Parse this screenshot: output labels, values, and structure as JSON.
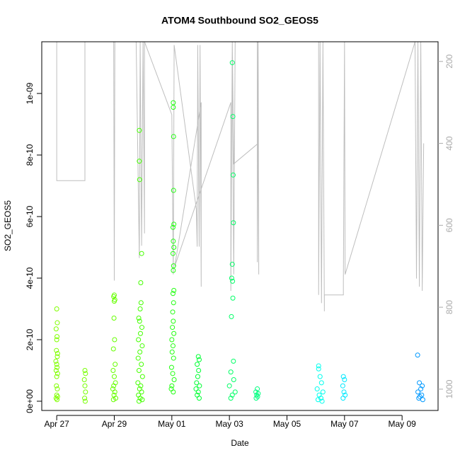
{
  "chart_data": {
    "type": "scatter",
    "title": "ATOM4 Southbound SO2_GEOS5",
    "x_label": "Date",
    "y_label": "SO2_GEOS5",
    "xlim": [
      -0.52,
      13.25
    ],
    "xticks": [
      {
        "value": 0,
        "label": "Apr 27"
      },
      {
        "value": 2,
        "label": "Apr 29"
      },
      {
        "value": 4,
        "label": "May 01"
      },
      {
        "value": 6,
        "label": "May 03"
      },
      {
        "value": 8,
        "label": "May 05"
      },
      {
        "value": 10,
        "label": "May 07"
      },
      {
        "value": 12,
        "label": "May 09"
      }
    ],
    "ylim": [
      -3e-11,
      1.168e-09
    ],
    "yticks": [
      {
        "value": 0,
        "label": "0e+00"
      },
      {
        "value": 2e-10,
        "label": "2e-10"
      },
      {
        "value": 4e-10,
        "label": "4e-10"
      },
      {
        "value": 6e-10,
        "label": "6e-10"
      },
      {
        "value": 8e-10,
        "label": "8e-10"
      },
      {
        "value": 1e-09,
        "label": "1e-09"
      }
    ],
    "y2lim": [
      1052,
      152
    ],
    "y2ticks": [
      200,
      400,
      600,
      800,
      1000
    ],
    "series": [
      {
        "color": "#80ff00",
        "values": [
          3e-10,
          2.55e-10,
          2.35e-10,
          2.1e-10,
          2e-10,
          1.65e-10,
          1.55e-10,
          1.45e-10,
          1.3e-10,
          1.2e-10,
          1.1e-10,
          1e-10,
          9e-11,
          8e-11,
          5e-11,
          4e-11,
          2e-11,
          1.5e-11,
          1e-11,
          5e-12
        ],
        "x": [
          0,
          0.02,
          -0.02,
          0.01,
          0,
          -0.01,
          0.03,
          0.02,
          -0.03,
          0,
          0.01,
          -0.02,
          0.03,
          0,
          -0.01,
          0.02,
          0,
          0.03,
          -0.02,
          0.01
        ]
      },
      {
        "color": "#77ff00",
        "values": [
          1e-10,
          9e-11,
          7e-11,
          5e-11,
          3e-11,
          1e-11,
          0
        ],
        "x": [
          0.98,
          1.0,
          0.96,
          0.98,
          1.0,
          0.97,
          0.99
        ]
      },
      {
        "color": "#66ff00",
        "values": [
          3.45e-10,
          3.4e-10,
          3.3e-10,
          3.25e-10,
          2.7e-10,
          2e-10,
          1.7e-10,
          1.2e-10,
          1e-10,
          8e-11,
          6e-11,
          5e-11,
          4e-11,
          3e-11,
          2e-11,
          1e-11,
          5e-12
        ],
        "x": [
          2.0,
          1.98,
          2.02,
          2.0,
          1.99,
          2.01,
          1.97,
          2.03,
          1.96,
          2.0,
          2.04,
          1.98,
          1.95,
          2.02,
          1.99,
          2.05,
          1.97
        ]
      },
      {
        "color": "#44ff00",
        "values": [
          8.8e-10,
          7.8e-10,
          7.2e-10,
          4.8e-10,
          3.85e-10,
          3.2e-10,
          3e-10,
          2.7e-10,
          2.6e-10,
          2.4e-10,
          2.2e-10,
          2e-10,
          1.8e-10,
          1.6e-10,
          1.4e-10,
          1.2e-10,
          1e-10,
          8e-11,
          6e-11,
          5e-11,
          4e-11,
          3e-11,
          2e-11,
          1e-11,
          5e-12,
          0
        ],
        "x": [
          2.87,
          2.87,
          2.88,
          2.95,
          2.92,
          2.93,
          2.9,
          2.85,
          2.88,
          2.96,
          2.91,
          2.84,
          2.97,
          2.89,
          2.83,
          2.94,
          2.86,
          2.98,
          2.82,
          2.92,
          2.88,
          2.95,
          2.84,
          2.9,
          2.97,
          2.86
        ]
      },
      {
        "color": "#22ff11",
        "values": [
          9.7e-10,
          9.55e-10,
          8.6e-10,
          6.85e-10,
          5.75e-10,
          5.65e-10,
          5.2e-10,
          5e-10,
          4.8e-10,
          4.4e-10,
          4.25e-10,
          3.6e-10,
          3.5e-10,
          3.2e-10,
          2.9e-10,
          2.6e-10,
          2.4e-10,
          2.2e-10,
          2e-10,
          1.8e-10,
          1.6e-10,
          1.4e-10,
          1.1e-10,
          9e-11,
          7e-11,
          5e-11,
          4e-11,
          3e-11
        ],
        "x": [
          4.05,
          4.05,
          4.06,
          4.06,
          4.07,
          4.04,
          4.05,
          4.07,
          4.04,
          4.06,
          4.05,
          4.07,
          4.04,
          4.06,
          4.03,
          4.05,
          4.02,
          4.07,
          4.0,
          4.04,
          4.01,
          4.06,
          3.99,
          4.03,
          4.08,
          4.0,
          3.98,
          4.05
        ]
      },
      {
        "color": "#00ff33",
        "values": [
          1.45e-10,
          1.35e-10,
          1.2e-10,
          1e-10,
          8e-11,
          6e-11,
          5e-11,
          4e-11,
          3e-11,
          2e-11,
          1e-11
        ],
        "x": [
          4.92,
          4.95,
          4.88,
          4.93,
          4.9,
          4.86,
          4.96,
          4.84,
          4.92,
          4.88,
          4.95
        ]
      },
      {
        "color": "#00ff66",
        "values": [
          1.1e-09,
          9.25e-10,
          7.35e-10,
          5.8e-10,
          4.45e-10,
          4e-10,
          3.9e-10,
          3.35e-10,
          2.75e-10,
          1.3e-10,
          9.5e-11,
          7e-11,
          5e-11,
          3e-11,
          2e-11,
          1e-11
        ],
        "x": [
          6.1,
          6.12,
          6.13,
          6.14,
          6.1,
          6.08,
          6.11,
          6.12,
          6.07,
          6.14,
          6.05,
          6.15,
          6.0,
          6.2,
          6.1,
          6.05
        ]
      },
      {
        "color": "#00ff80",
        "values": [
          4e-11,
          3e-11,
          2.5e-11,
          2e-11,
          1.5e-11,
          1e-11
        ],
        "x": [
          6.97,
          6.92,
          7.0,
          6.95,
          6.98,
          6.93
        ]
      },
      {
        "color": "#00ffee",
        "values": [
          1.15e-10,
          1.05e-10,
          8e-11,
          6e-11,
          4e-11,
          3e-11,
          2e-11,
          1e-11,
          5e-12,
          0
        ],
        "x": [
          9.1,
          9.1,
          9.15,
          9.2,
          9.05,
          9.25,
          9.12,
          9.18,
          9.08,
          9.22
        ]
      },
      {
        "color": "#00e8ff",
        "values": [
          8e-11,
          7e-11,
          5e-11,
          3e-11,
          2e-11,
          1e-11
        ],
        "x": [
          9.96,
          10.0,
          9.94,
          9.98,
          10.02,
          9.95
        ]
      },
      {
        "color": "#0099ff",
        "values": [
          1.5e-10,
          6e-11,
          5e-11,
          4e-11,
          3e-11,
          2e-11,
          1.5e-11,
          1e-11,
          5e-12
        ],
        "x": [
          12.54,
          12.6,
          12.7,
          12.65,
          12.55,
          12.68,
          12.62,
          12.58,
          12.72
        ]
      },
      {
        "type": "line",
        "axis": "y2",
        "color": "#bebebe",
        "x": [
          0,
          0,
          0.98,
          0.98,
          1.98,
          2.0,
          2.02,
          2.76,
          2.87,
          2.9,
          2.95,
          3.0,
          3.05,
          3.05,
          4.0,
          4.05,
          4.08,
          4.85,
          4.88,
          4.9,
          4.95,
          4.98,
          5.02,
          5.02,
          4.1,
          6.05,
          6.05,
          6.1,
          6.15,
          6.2,
          6.97,
          6.97,
          7.0,
          7.02,
          7.0,
          6.15,
          6.1,
          9.1,
          9.1,
          9.15,
          9.2,
          9.25,
          9.3,
          9.3,
          9.96,
          9.96,
          10.0,
          10.02,
          12.45,
          12.5,
          12.55,
          12.6,
          12.65,
          12.7,
          12.75
        ],
        "values": [
          152,
          491,
          491,
          152,
          152,
          735,
          152,
          152,
          680,
          152,
          650,
          152,
          620,
          152,
          330,
          720,
          160,
          560,
          652,
          160,
          652,
          160,
          750,
          300,
          700,
          300,
          760,
          152,
          720,
          152,
          152,
          690,
          152,
          720,
          400,
          450,
          152,
          152,
          770,
          152,
          790,
          152,
          810,
          770,
          770,
          740,
          152,
          720,
          152,
          730,
          152,
          750,
          152,
          760,
          400
        ]
      }
    ]
  }
}
